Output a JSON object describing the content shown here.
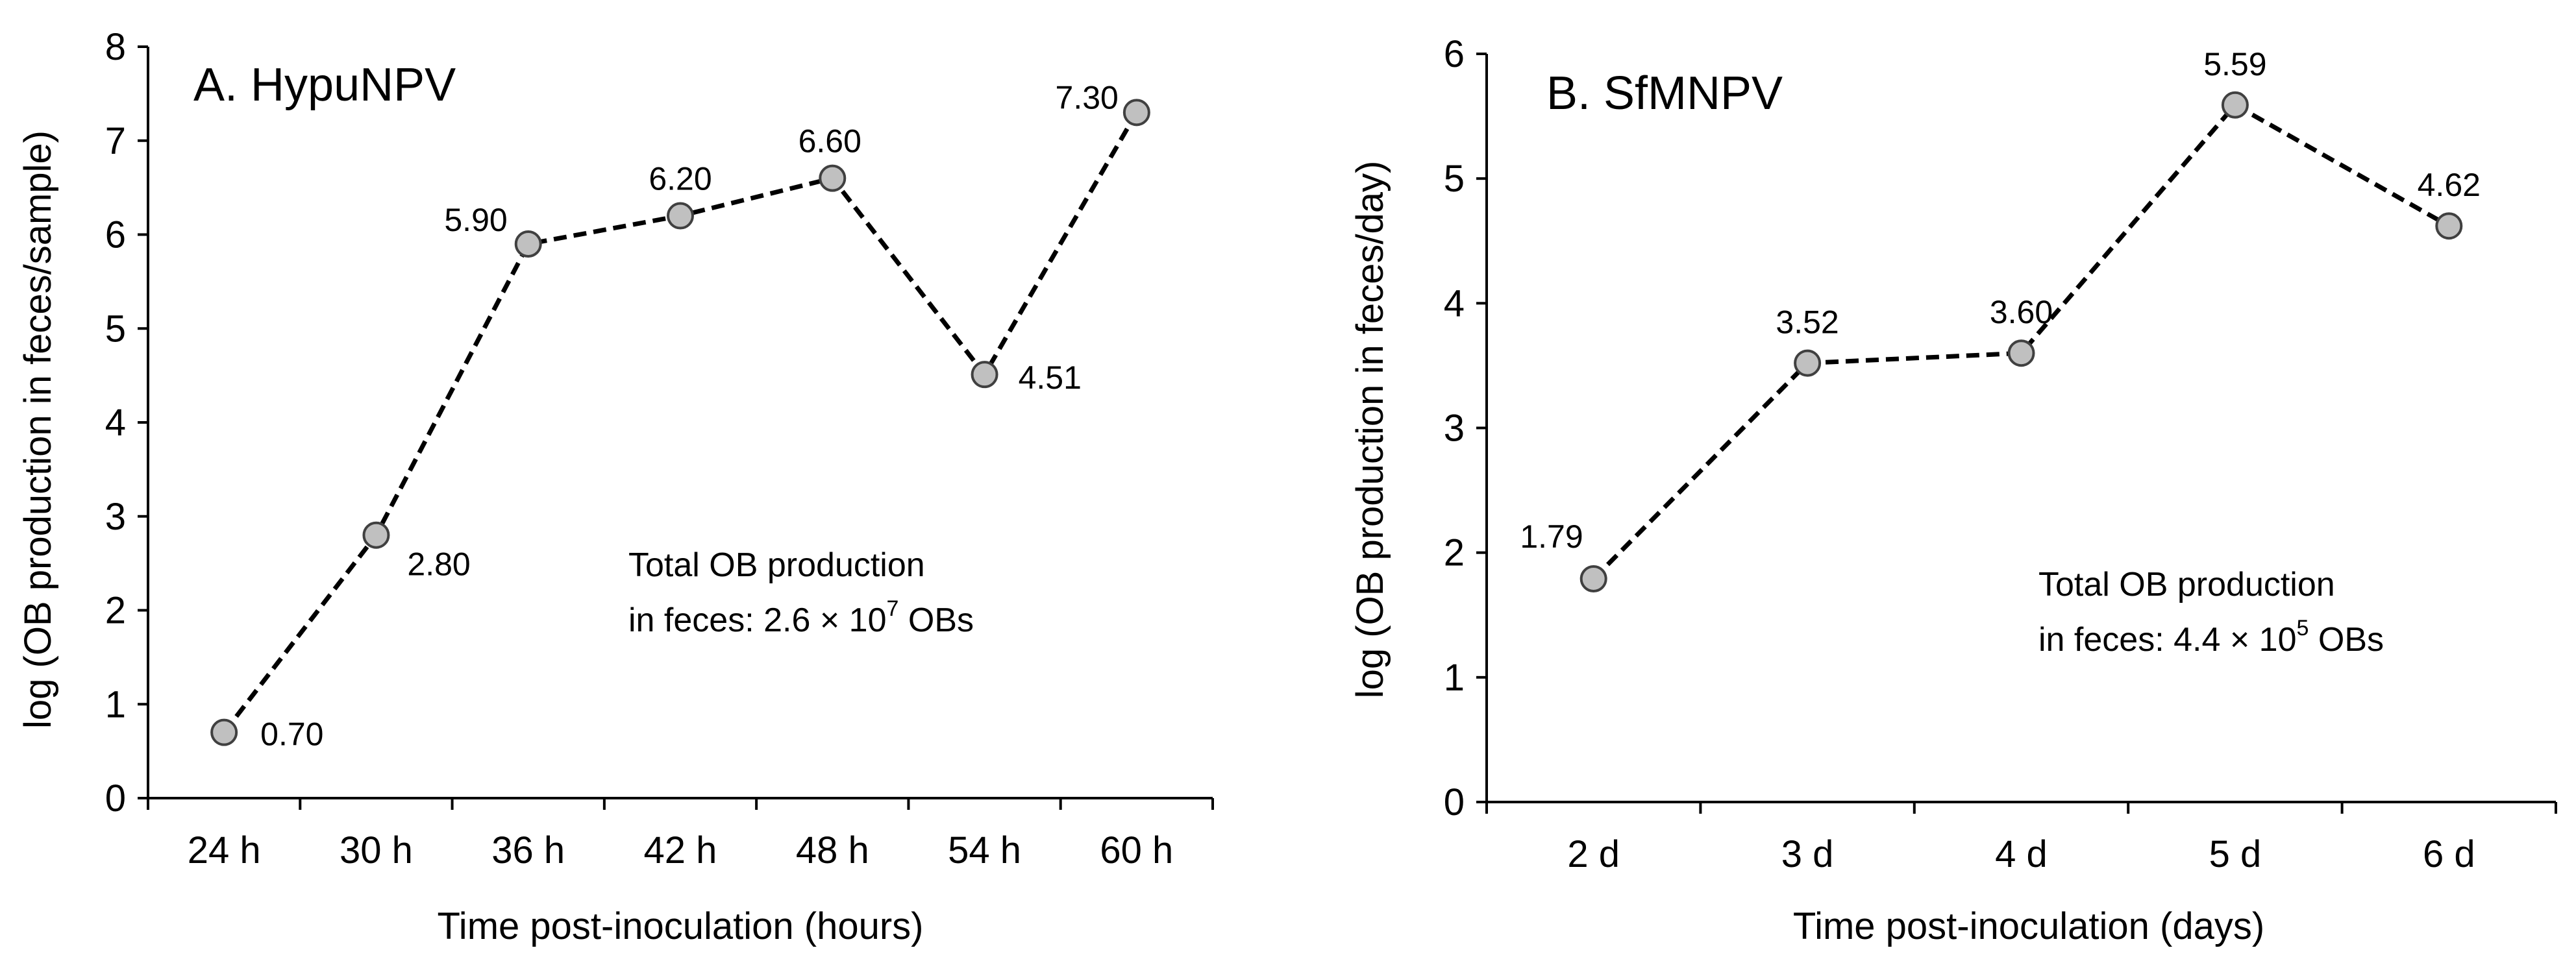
{
  "chart_data": [
    {
      "type": "line",
      "title": "A. HypuNPV",
      "xlabel": "Time post-inoculation  (hours)",
      "ylabel": "log (OB production in feces/sample)",
      "categories": [
        "24 h",
        "30 h",
        "36 h",
        "42 h",
        "48 h",
        "54 h",
        "60 h"
      ],
      "values": [
        0.7,
        2.8,
        5.9,
        6.2,
        6.6,
        4.51,
        7.3
      ],
      "data_labels": [
        "0.70",
        "2.80",
        "5.90",
        "6.20",
        "6.60",
        "4.51",
        "7.30"
      ],
      "ylim": [
        0,
        8
      ],
      "yticks": [
        "0",
        "1",
        "2",
        "3",
        "4",
        "5",
        "6",
        "7",
        "8"
      ],
      "grid": false,
      "line_style": "dashed",
      "marker_color": "#c0c0c0",
      "note_line1": "Total OB production",
      "note_line2_prefix": "in feces: 2.6 × 10",
      "note_exp": "7",
      "note_line2_suffix": " OBs"
    },
    {
      "type": "line",
      "title": "B. SfMNPV",
      "xlabel": "Time post-inoculation  (days)",
      "ylabel": "log (OB production in feces/day)",
      "categories": [
        "2 d",
        "3 d",
        "4 d",
        "5 d",
        "6 d"
      ],
      "values": [
        1.79,
        3.52,
        3.6,
        5.59,
        4.62
      ],
      "data_labels": [
        "1.79",
        "3.52",
        "3.60",
        "5.59",
        "4.62"
      ],
      "ylim": [
        0,
        6
      ],
      "yticks": [
        "0",
        "1",
        "2",
        "3",
        "4",
        "5",
        "6"
      ],
      "grid": false,
      "line_style": "dashed",
      "marker_color": "#c0c0c0",
      "note_line1": "Total OB production",
      "note_line2_prefix": "in feces: 4.4 × 10",
      "note_exp": "5",
      "note_line2_suffix": " OBs"
    }
  ]
}
